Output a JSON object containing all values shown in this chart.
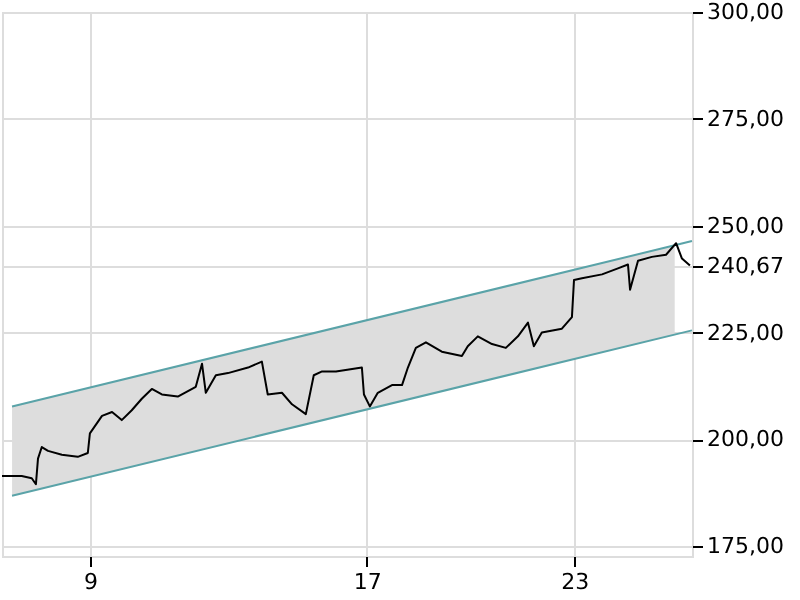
{
  "chart_data": {
    "type": "line",
    "xlim": [
      6.46,
      26.4
    ],
    "xticks": [
      9,
      17,
      23
    ],
    "ylim": [
      172.7,
      300
    ],
    "yticks": [
      {
        "value": 175,
        "label": "175,00"
      },
      {
        "value": 200,
        "label": "200,00"
      },
      {
        "value": 225,
        "label": "225,00"
      },
      {
        "value": 240.67,
        "label": "240,67"
      },
      {
        "value": 250,
        "label": "250,00"
      },
      {
        "value": 275,
        "label": "275,00"
      },
      {
        "value": 300,
        "label": "300,00"
      }
    ],
    "grid": true,
    "line_style": "solid",
    "marker": "none",
    "series": [
      {
        "type": "line",
        "color": "#5aa3a8",
        "x": [
          6.75,
          25.9,
          26.4
        ],
        "values": [
          207.7,
          245.4,
          246.4
        ],
        "lower": [
          186.8,
          224.5,
          null
        ],
        "upper": [
          207.7,
          245.4,
          null
        ]
      },
      {
        "type": "line",
        "color": "#5aa3a8",
        "x": [
          6.75,
          26.4
        ],
        "values": [
          186.8,
          225.5
        ]
      },
      {
        "color": "#000000",
        "x": [
          6.46,
          7.03,
          7.32,
          7.44,
          7.5,
          7.61,
          7.79,
          8.19,
          8.65,
          8.94,
          9.0,
          9.35,
          9.64,
          9.92,
          10.21,
          10.5,
          10.79,
          11.08,
          11.54,
          12.06,
          12.24,
          12.35,
          12.64,
          12.99,
          13.57,
          13.97,
          14.14,
          14.55,
          14.84,
          15.24,
          15.47,
          15.71,
          16.11,
          16.86,
          16.92,
          17.09,
          17.32,
          17.73,
          18.02,
          18.19,
          18.42,
          18.71,
          19.17,
          19.75,
          19.92,
          20.21,
          20.62,
          21.02,
          21.37,
          21.66,
          21.83,
          22.06,
          22.64,
          22.93,
          22.99,
          23.22,
          23.8,
          24.26,
          24.55,
          24.61,
          24.84,
          25.24,
          25.65,
          25.94,
          26.11,
          26.34
        ],
        "values": [
          191.4,
          191.4,
          190.9,
          189.5,
          195.5,
          198.2,
          197.3,
          196.4,
          195.9,
          196.8,
          201.4,
          205.5,
          206.4,
          204.5,
          206.8,
          209.5,
          211.8,
          210.5,
          210.0,
          212.3,
          217.7,
          210.9,
          215.0,
          215.5,
          216.8,
          218.2,
          210.5,
          210.9,
          208.2,
          205.9,
          215.0,
          215.9,
          215.9,
          216.8,
          210.5,
          207.7,
          210.9,
          212.7,
          212.7,
          216.8,
          221.4,
          222.7,
          220.5,
          219.5,
          221.8,
          224.1,
          222.3,
          221.4,
          224.1,
          227.3,
          221.8,
          225.0,
          225.9,
          228.6,
          237.3,
          237.7,
          238.6,
          240.0,
          240.9,
          235.0,
          241.8,
          242.7,
          243.2,
          245.9,
          242.3,
          240.67
        ]
      }
    ]
  }
}
